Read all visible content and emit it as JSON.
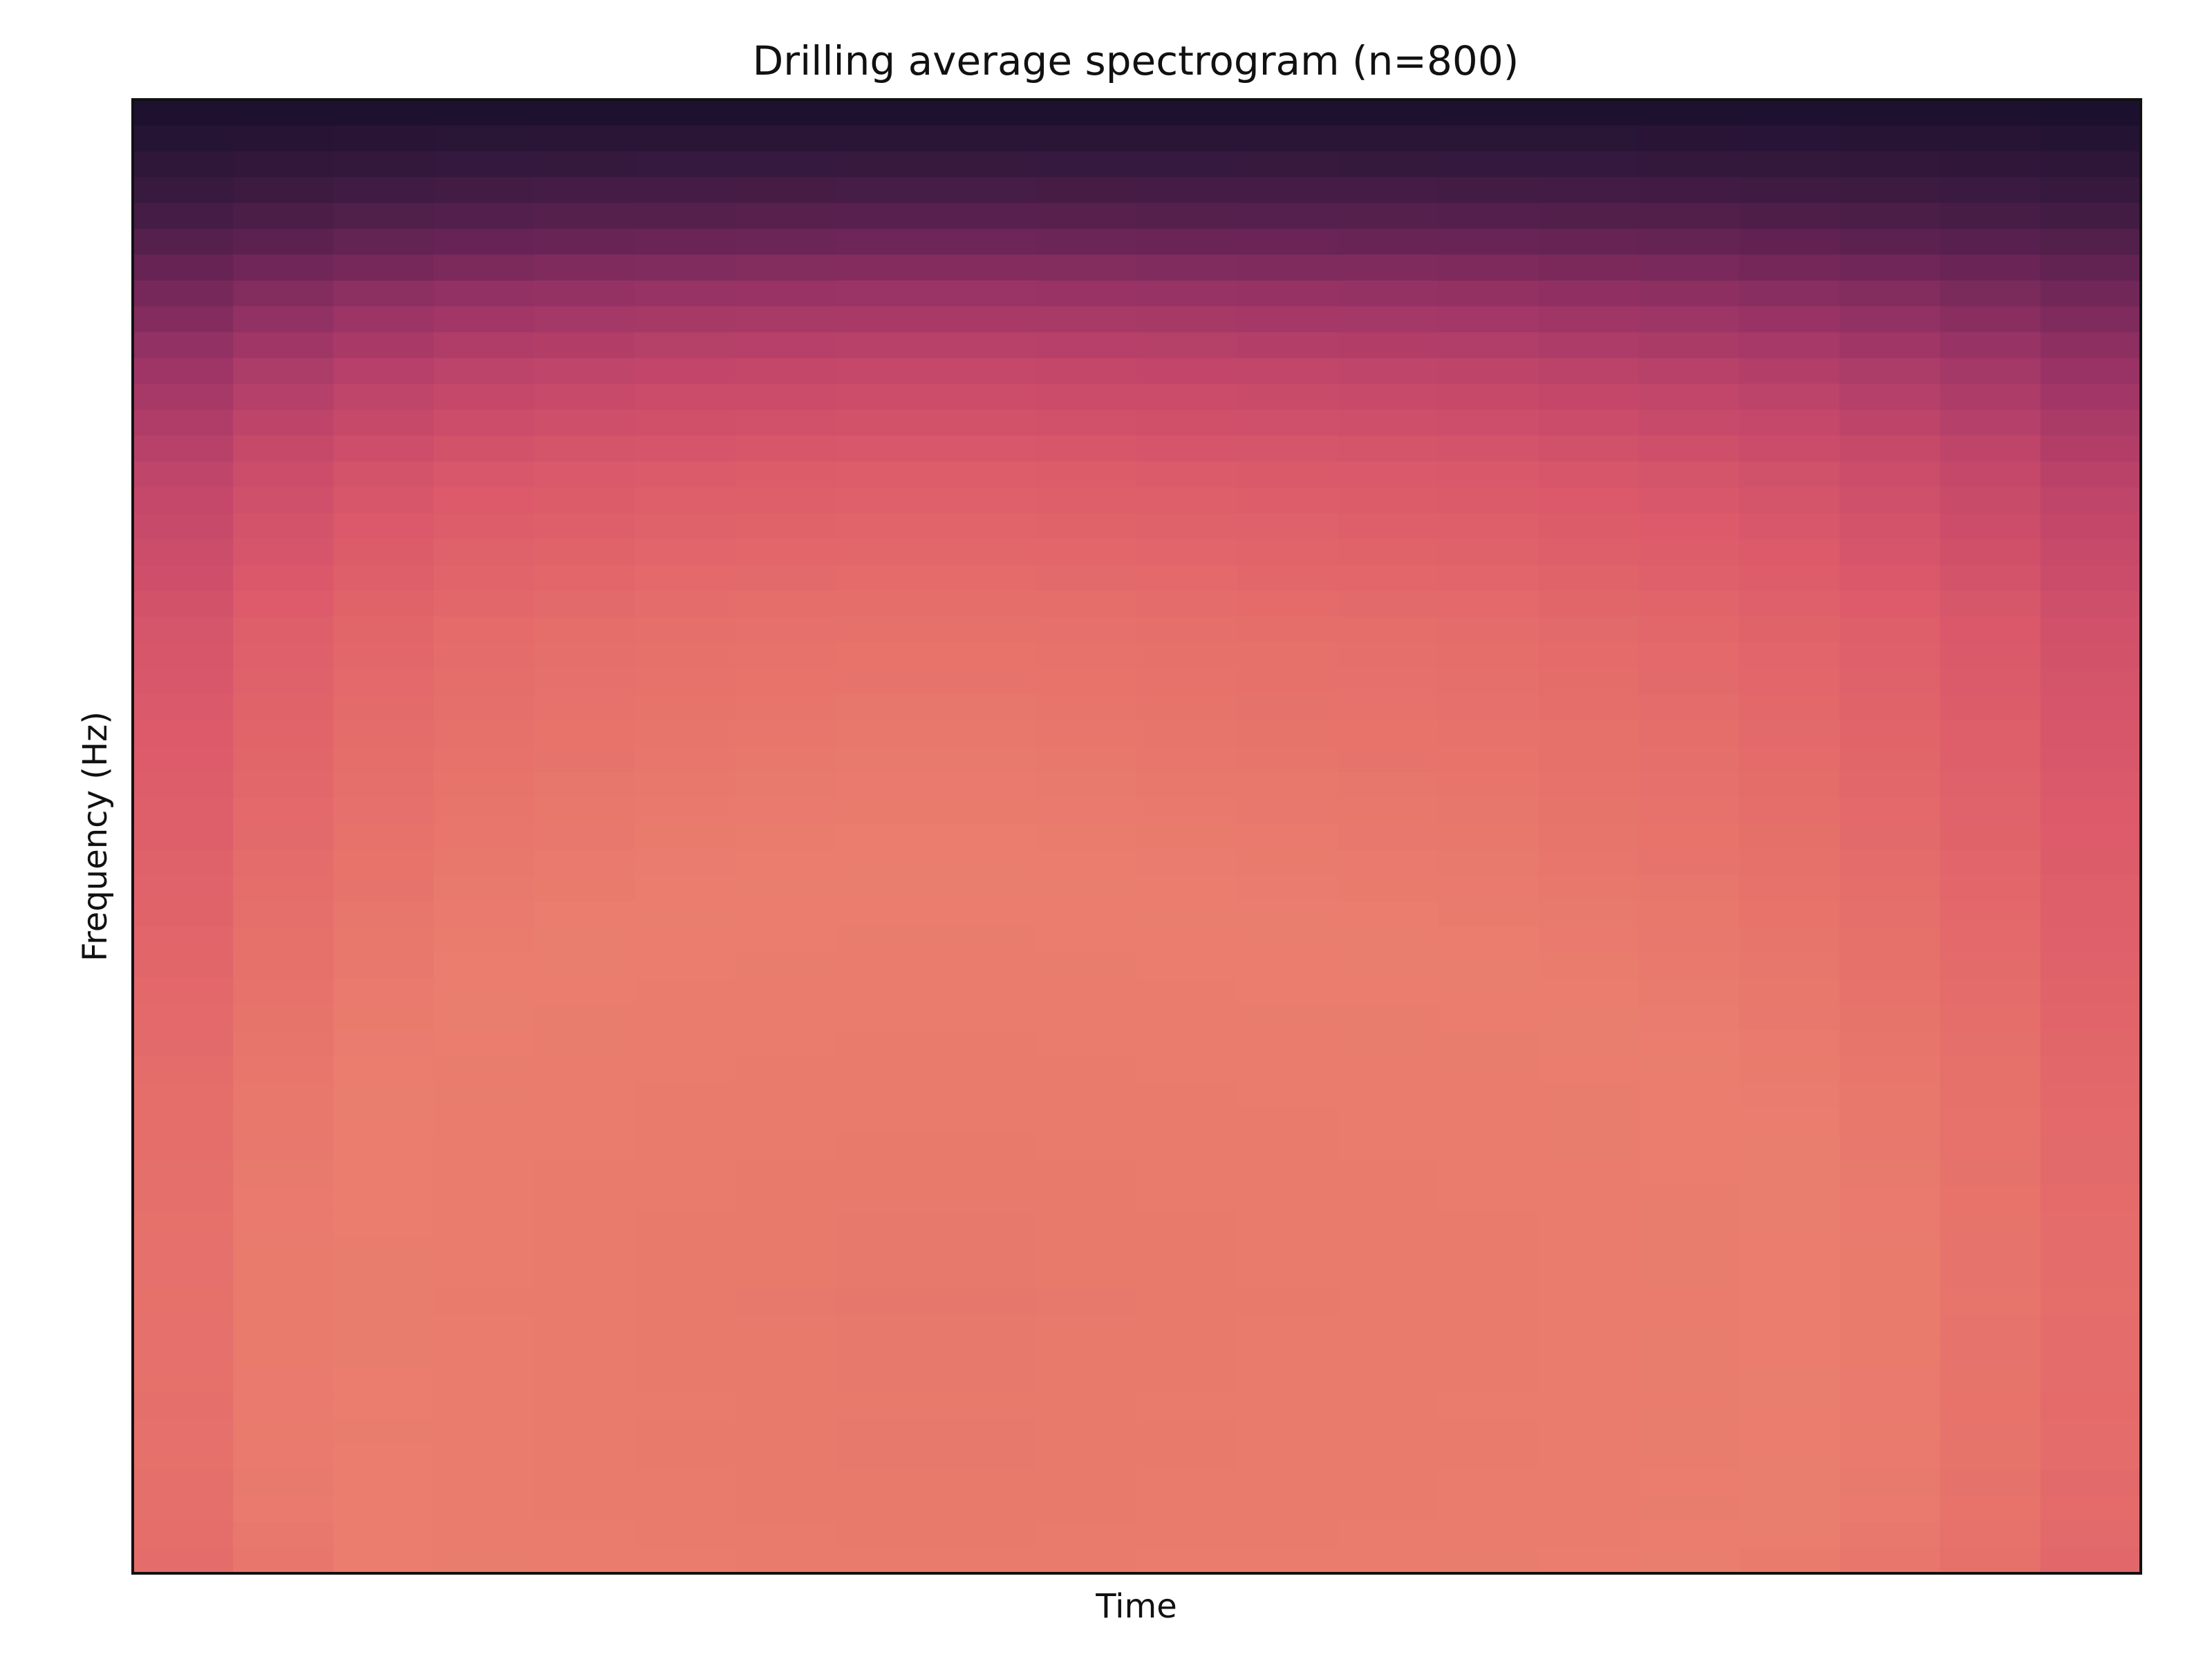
{
  "chart_data": {
    "type": "heatmap",
    "title": "Drilling average spectrogram (n=800)",
    "xlabel": "Time",
    "ylabel": "Frequency (Hz)",
    "x_ticks": [],
    "y_ticks": [],
    "grid": false,
    "legend": "none",
    "colormap": "magma",
    "colors": {
      "ramp": [
        "#180f2c",
        "#3a1a40",
        "#6a2456",
        "#9c3466",
        "#c4476a",
        "#dc5a6a",
        "#e56e6a",
        "#ea7e6e",
        "#e87a6c",
        "#d6636e"
      ],
      "frame": "#111111",
      "background": "#ffffff"
    },
    "level_range": [
      0,
      1
    ],
    "frequency_profile": [
      0.02,
      0.06,
      0.1,
      0.14,
      0.18,
      0.23,
      0.28,
      0.33,
      0.37,
      0.41,
      0.45,
      0.48,
      0.51,
      0.54,
      0.57,
      0.59,
      0.61,
      0.63,
      0.65,
      0.67,
      0.69,
      0.7,
      0.71,
      0.72,
      0.73,
      0.74,
      0.75,
      0.76,
      0.77,
      0.78,
      0.79,
      0.8,
      0.81,
      0.82,
      0.83,
      0.84,
      0.85,
      0.86,
      0.87,
      0.875,
      0.88,
      0.885,
      0.89,
      0.895,
      0.9,
      0.9,
      0.905,
      0.9,
      0.9,
      0.895,
      0.89,
      0.9,
      0.895,
      0.885,
      0.89,
      0.88,
      0.86
    ],
    "time_profile": [
      0.76,
      0.84,
      0.9,
      0.94,
      0.96,
      0.98,
      0.99,
      1.0,
      1.0,
      0.99,
      0.98,
      0.97,
      0.96,
      0.95,
      0.93,
      0.91,
      0.88,
      0.84,
      0.79,
      0.73
    ]
  }
}
